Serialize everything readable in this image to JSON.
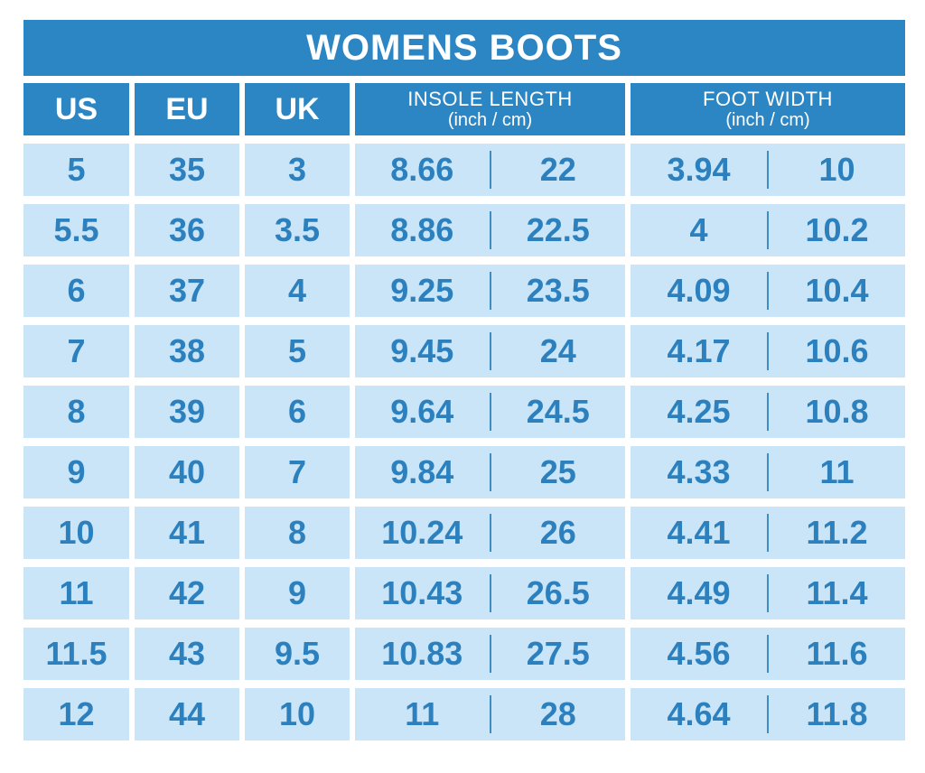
{
  "title": "WOMENS BOOTS",
  "header": {
    "us": "US",
    "eu": "EU",
    "uk": "UK",
    "insole_title": "INSOLE LENGTH",
    "insole_unit": "(inch / cm)",
    "foot_title": "FOOT WIDTH",
    "foot_unit": "(inch / cm)"
  },
  "rows": [
    {
      "us": "5",
      "eu": "35",
      "uk": "3",
      "insole_in": "8.66",
      "insole_cm": "22",
      "width_in": "3.94",
      "width_cm": "10"
    },
    {
      "us": "5.5",
      "eu": "36",
      "uk": "3.5",
      "insole_in": "8.86",
      "insole_cm": "22.5",
      "width_in": "4",
      "width_cm": "10.2"
    },
    {
      "us": "6",
      "eu": "37",
      "uk": "4",
      "insole_in": "9.25",
      "insole_cm": "23.5",
      "width_in": "4.09",
      "width_cm": "10.4"
    },
    {
      "us": "7",
      "eu": "38",
      "uk": "5",
      "insole_in": "9.45",
      "insole_cm": "24",
      "width_in": "4.17",
      "width_cm": "10.6"
    },
    {
      "us": "8",
      "eu": "39",
      "uk": "6",
      "insole_in": "9.64",
      "insole_cm": "24.5",
      "width_in": "4.25",
      "width_cm": "10.8"
    },
    {
      "us": "9",
      "eu": "40",
      "uk": "7",
      "insole_in": "9.84",
      "insole_cm": "25",
      "width_in": "4.33",
      "width_cm": "11"
    },
    {
      "us": "10",
      "eu": "41",
      "uk": "8",
      "insole_in": "10.24",
      "insole_cm": "26",
      "width_in": "4.41",
      "width_cm": "11.2"
    },
    {
      "us": "11",
      "eu": "42",
      "uk": "9",
      "insole_in": "10.43",
      "insole_cm": "26.5",
      "width_in": "4.49",
      "width_cm": "11.4"
    },
    {
      "us": "11.5",
      "eu": "43",
      "uk": "9.5",
      "insole_in": "10.83",
      "insole_cm": "27.5",
      "width_in": "4.56",
      "width_cm": "11.6"
    },
    {
      "us": "12",
      "eu": "44",
      "uk": "10",
      "insole_in": "11",
      "insole_cm": "28",
      "width_in": "4.64",
      "width_cm": "11.8"
    }
  ],
  "colors": {
    "header_blue": "#2D86C4",
    "cell_blue": "#C9E5F7",
    "value_text_blue": "#2C80BD",
    "divider_blue": "#3E8EC4",
    "background": "#FFFFFF"
  },
  "chart_data": {
    "type": "table",
    "title": "WOMENS BOOTS",
    "columns": [
      "US",
      "EU",
      "UK",
      "INSOLE LENGTH (inch)",
      "INSOLE LENGTH (cm)",
      "FOOT WIDTH (inch)",
      "FOOT WIDTH (cm)"
    ],
    "rows": [
      [
        5,
        35,
        3,
        8.66,
        22,
        3.94,
        10
      ],
      [
        5.5,
        36,
        3.5,
        8.86,
        22.5,
        4,
        10.2
      ],
      [
        6,
        37,
        4,
        9.25,
        23.5,
        4.09,
        10.4
      ],
      [
        7,
        38,
        5,
        9.45,
        24,
        4.17,
        10.6
      ],
      [
        8,
        39,
        6,
        9.64,
        24.5,
        4.25,
        10.8
      ],
      [
        9,
        40,
        7,
        9.84,
        25,
        4.33,
        11
      ],
      [
        10,
        41,
        8,
        10.24,
        26,
        4.41,
        11.2
      ],
      [
        11,
        42,
        9,
        10.43,
        26.5,
        4.49,
        11.4
      ],
      [
        11.5,
        43,
        9.5,
        10.83,
        27.5,
        4.56,
        11.6
      ],
      [
        12,
        44,
        10,
        11,
        28,
        4.64,
        11.8
      ]
    ]
  }
}
